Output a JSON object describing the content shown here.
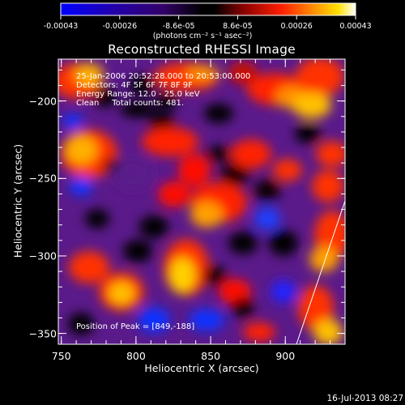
{
  "colorbar": {
    "tick_labels": [
      "-0.00043",
      "-0.00026",
      "-8.6e-05",
      "8.6e-05",
      "0.00026",
      "0.00043"
    ],
    "units": "(photons cm⁻² s⁻¹ asec⁻²)",
    "range": [
      -0.00043,
      0.00043
    ]
  },
  "title": "Reconstructed RHESSI Image",
  "annotations": {
    "line1": "25-Jan-2006 20:52:28.000 to 20:53:00.000",
    "line2": "Detectors: 4F 5F 6F 7F 8F 9F",
    "line3": "Energy Range: 12.0 - 25.0 keV",
    "line4": "Clean     Total counts: 481.",
    "peak": "Position of Peak = [849,-188]"
  },
  "chart_data": {
    "type": "heatmap",
    "title": "Reconstructed RHESSI Image",
    "xlabel": "Heliocentric X (arcsec)",
    "ylabel": "Heliocentric Y (arcsec)",
    "xlim": [
      748,
      940
    ],
    "ylim": [
      -357,
      -173
    ],
    "x_ticks": [
      "750",
      "800",
      "850",
      "900"
    ],
    "y_ticks": [
      "-200",
      "-250",
      "-300",
      "-350"
    ],
    "colormap": "blue-purple-red-yellow-white",
    "peak_position": [
      849,
      -188
    ],
    "grid": false
  },
  "footer": {
    "timestamp": "16-Jul-2013 08:27"
  },
  "colors": {
    "background": "#000000",
    "foreground": "#ffffff"
  }
}
